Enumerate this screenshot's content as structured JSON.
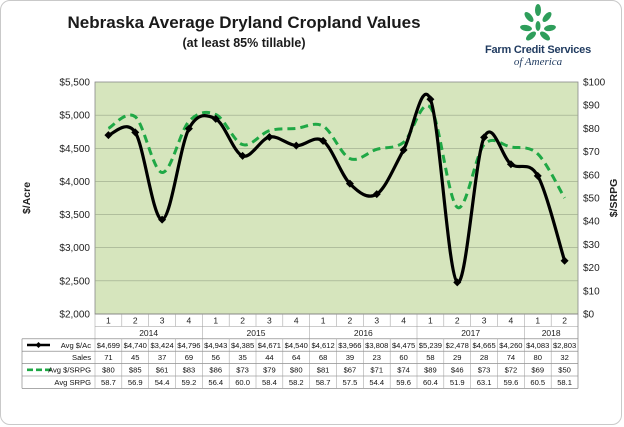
{
  "title": "Nebraska Average Dryland Cropland Values",
  "subtitle": "(at least 85% tillable)",
  "logo": {
    "name": "Farm Credit Services",
    "sub": "of America",
    "icon": "wheat-leaf-icon"
  },
  "colors": {
    "plot_bg": "#d6e5bd",
    "avg_line": "#000000",
    "srpg_line": "#1fa845",
    "logo_green": "#2e9e5b"
  },
  "chart_data": {
    "type": "line",
    "title": "Nebraska Average Dryland Cropland Values",
    "subtitle": "(at least 85% tillable)",
    "ylabel": "$/Acre",
    "y2label": "$/SRPG",
    "ylim": [
      2000,
      5500
    ],
    "y2lim": [
      0,
      100
    ],
    "yticks": [
      "$2,000",
      "$2,500",
      "$3,000",
      "$3,500",
      "$4,000",
      "$4,500",
      "$5,000",
      "$5,500"
    ],
    "y2ticks": [
      "$0",
      "$10",
      "$20",
      "$30",
      "$40",
      "$50",
      "$60",
      "$70",
      "$80",
      "$90",
      "$100"
    ],
    "grid": true,
    "quarters": [
      "1",
      "2",
      "3",
      "4",
      "1",
      "2",
      "3",
      "4",
      "1",
      "2",
      "3",
      "4",
      "1",
      "2",
      "3",
      "4",
      "1",
      "2"
    ],
    "years": [
      {
        "label": "2014",
        "count": 4
      },
      {
        "label": "2015",
        "count": 4
      },
      {
        "label": "2016",
        "count": 4
      },
      {
        "label": "2017",
        "count": 4
      },
      {
        "label": "2018",
        "count": 2
      }
    ],
    "series": [
      {
        "name": "Avg $/Ac",
        "axis": "left",
        "style": "solid",
        "values": [
          4699,
          4740,
          3424,
          4796,
          4943,
          4385,
          4671,
          4540,
          4612,
          3966,
          3808,
          4475,
          5239,
          2478,
          4665,
          4260,
          4083,
          2803
        ],
        "labels": [
          "$4,699",
          "$4,740",
          "$3,424",
          "$4,796",
          "$4,943",
          "$4,385",
          "$4,671",
          "$4,540",
          "$4,612",
          "$3,966",
          "$3,808",
          "$4,475",
          "$5,239",
          "$2,478",
          "$4,665",
          "$4,260",
          "$4,083",
          "$2,803"
        ]
      },
      {
        "name": "Avg $/SRPG",
        "axis": "right",
        "style": "dashed",
        "values": [
          80,
          85,
          61,
          83,
          86,
          73,
          79,
          80,
          81,
          67,
          71,
          74,
          89,
          46,
          73,
          72,
          69,
          50
        ],
        "labels": [
          "$80",
          "$85",
          "$61",
          "$83",
          "$86",
          "$73",
          "$79",
          "$80",
          "$81",
          "$67",
          "$71",
          "$74",
          "$89",
          "$46",
          "$73",
          "$72",
          "$69",
          "$50"
        ]
      }
    ],
    "table_rows": [
      {
        "name": "Sales",
        "values": [
          "71",
          "45",
          "37",
          "69",
          "56",
          "35",
          "44",
          "64",
          "68",
          "39",
          "23",
          "60",
          "58",
          "29",
          "28",
          "74",
          "80",
          "32"
        ]
      },
      {
        "name": "Avg SRPG",
        "values": [
          "58.7",
          "56.9",
          "54.4",
          "59.2",
          "56.4",
          "60.0",
          "58.4",
          "58.2",
          "58.7",
          "57.5",
          "54.4",
          "59.6",
          "60.4",
          "51.9",
          "63.1",
          "59.6",
          "60.5",
          "58.1"
        ]
      }
    ]
  }
}
